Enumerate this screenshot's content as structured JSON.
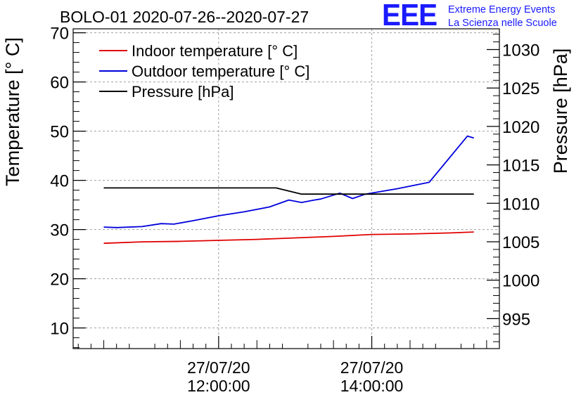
{
  "chart_data": {
    "type": "line",
    "title": "BOLO-01 2020-07-26--2020-07-27",
    "ylabel": "Temperature [° C]",
    "y2label": "Pressure [hPa]",
    "xlabel": "",
    "x_axis": "time",
    "xlim": [
      "2020-07-27 10:06:00",
      "2020-07-27 15:40:00"
    ],
    "ylim": [
      5.8,
      70.8
    ],
    "y2lim": [
      991.1,
      1032.7
    ],
    "y_ticks": [
      "10",
      "20",
      "30",
      "40",
      "50",
      "60",
      "70"
    ],
    "y2_ticks": [
      "995",
      "1000",
      "1005",
      "1010",
      "1015",
      "1020",
      "1025",
      "1030"
    ],
    "x_ticks": [
      {
        "date": "27/07/20",
        "time": "12:00:00",
        "x": "2020-07-27 12:00:00"
      },
      {
        "date": "27/07/20",
        "time": "14:00:00",
        "x": "2020-07-27 14:00:00"
      }
    ],
    "grid": true,
    "legend_position": "top-left",
    "series": [
      {
        "name": "Indoor temperature [° C]",
        "axis": "left",
        "color": "#e00000",
        "x": [
          "2020-07-27 10:30",
          "2020-07-27 11:00",
          "2020-07-27 11:30",
          "2020-07-27 12:00",
          "2020-07-27 12:30",
          "2020-07-27 13:00",
          "2020-07-27 13:30",
          "2020-07-27 14:00",
          "2020-07-27 14:30",
          "2020-07-27 15:00",
          "2020-07-27 15:20"
        ],
        "values": [
          27.2,
          27.5,
          27.6,
          27.8,
          28.0,
          28.3,
          28.6,
          29.0,
          29.1,
          29.3,
          29.5
        ]
      },
      {
        "name": "Outdoor temperature [° C]",
        "axis": "left",
        "color": "#0000dd",
        "x": [
          "2020-07-27 10:30",
          "2020-07-27 10:40",
          "2020-07-27 11:00",
          "2020-07-27 11:15",
          "2020-07-27 11:25",
          "2020-07-27 11:40",
          "2020-07-27 12:00",
          "2020-07-27 12:20",
          "2020-07-27 12:40",
          "2020-07-27 12:55",
          "2020-07-27 13:05",
          "2020-07-27 13:15",
          "2020-07-27 13:20",
          "2020-07-27 13:35",
          "2020-07-27 13:45",
          "2020-07-27 13:55",
          "2020-07-27 14:20",
          "2020-07-27 14:45",
          "2020-07-27 15:15",
          "2020-07-27 15:20"
        ],
        "values": [
          30.5,
          30.4,
          30.6,
          31.2,
          31.1,
          31.8,
          32.8,
          33.6,
          34.6,
          36.0,
          35.5,
          36.0,
          36.2,
          37.4,
          36.3,
          37.2,
          38.3,
          39.6,
          49.0,
          48.6
        ]
      },
      {
        "name": "Pressure [hPa]",
        "axis": "right",
        "color": "#000000",
        "x": [
          "2020-07-27 10:30",
          "2020-07-27 12:45",
          "2020-07-27 13:05",
          "2020-07-27 15:20"
        ],
        "values": [
          1012.0,
          1012.0,
          1011.2,
          1011.2
        ]
      }
    ]
  },
  "logo": {
    "mark": "EEE",
    "line1": "Extreme Energy Events",
    "line2": "La Scienza nelle Scuole"
  }
}
